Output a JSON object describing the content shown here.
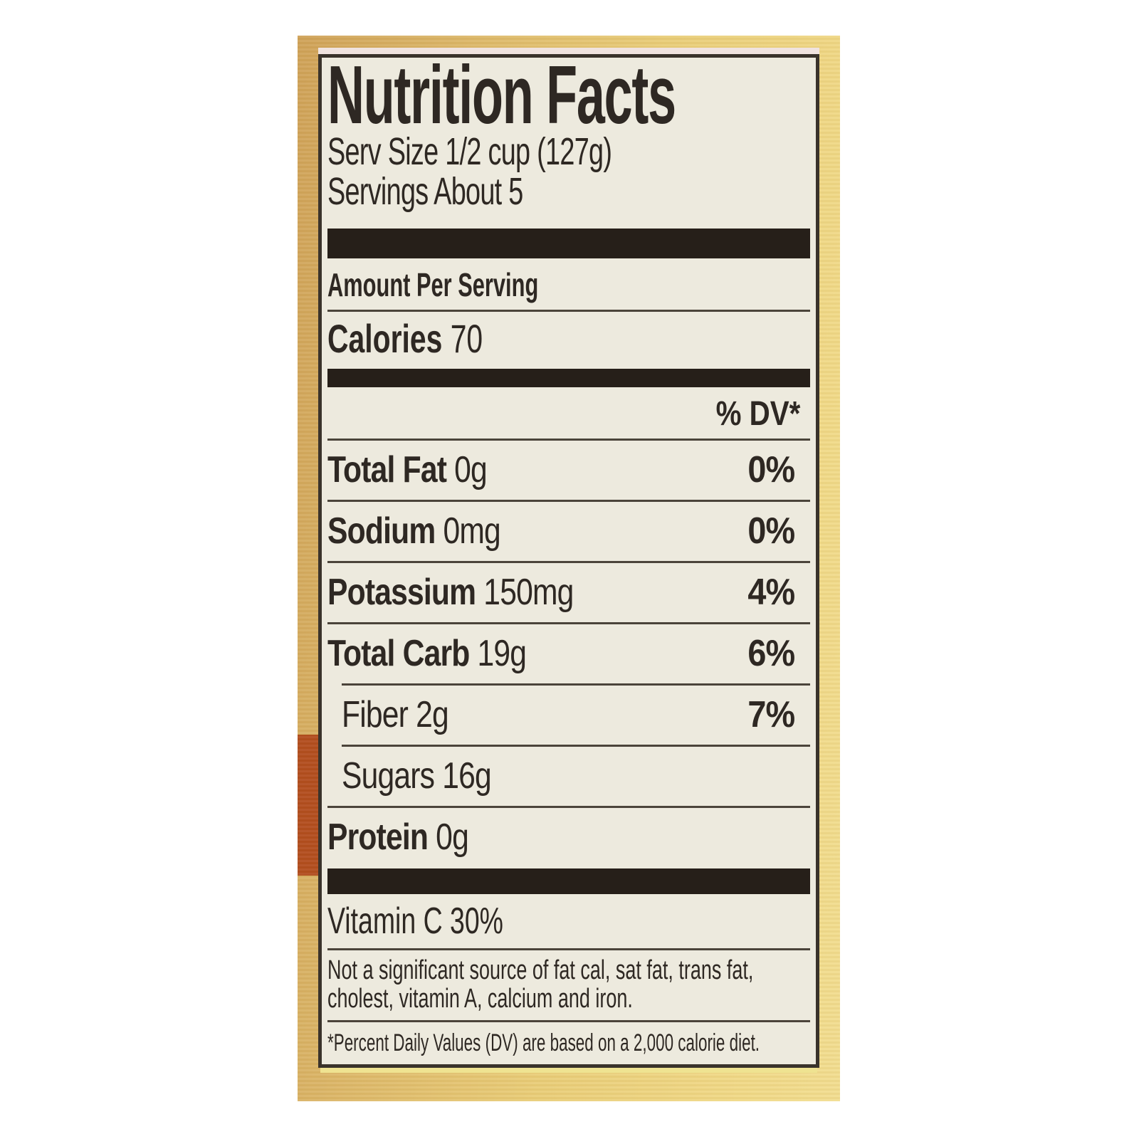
{
  "label": {
    "title": "Nutrition Facts",
    "serving_size": "Serv Size 1/2 cup (127g)",
    "servings": "Servings About 5",
    "amount_per_serving": "Amount Per Serving",
    "calories_label": "Calories",
    "calories_value": "70",
    "dv_header": "% DV*",
    "rows": [
      {
        "name": "Total Fat",
        "amount": "0g",
        "dv": "0%",
        "bold": true,
        "indent": false
      },
      {
        "name": "Sodium",
        "amount": "0mg",
        "dv": "0%",
        "bold": true,
        "indent": false
      },
      {
        "name": "Potassium",
        "amount": "150mg",
        "dv": "4%",
        "bold": true,
        "indent": false
      },
      {
        "name": "Total Carb",
        "amount": "19g",
        "dv": "6%",
        "bold": true,
        "indent": false
      },
      {
        "name": "Fiber",
        "amount": "2g",
        "dv": "7%",
        "bold": false,
        "indent": true
      },
      {
        "name": "Sugars",
        "amount": "16g",
        "dv": "",
        "bold": false,
        "indent": true
      },
      {
        "name": "Protein",
        "amount": "0g",
        "dv": "",
        "bold": true,
        "indent": false
      }
    ],
    "vitamin_line": "Vitamin C 30%",
    "note": "Not a significant source of fat cal, sat fat, trans fat, cholest, vitamin A, calcium and iron.",
    "footnote": "*Percent Daily Values (DV) are based on a 2,000 calorie diet."
  },
  "colors": {
    "package_gold": "#e9cd78",
    "package_gold_dark": "#cfa258",
    "accent_bar_rust": "#b14c1d",
    "label_background": "#edeade",
    "label_border": "#3a332b",
    "divider_bar": "#261f19",
    "ink": "#2e2823"
  }
}
